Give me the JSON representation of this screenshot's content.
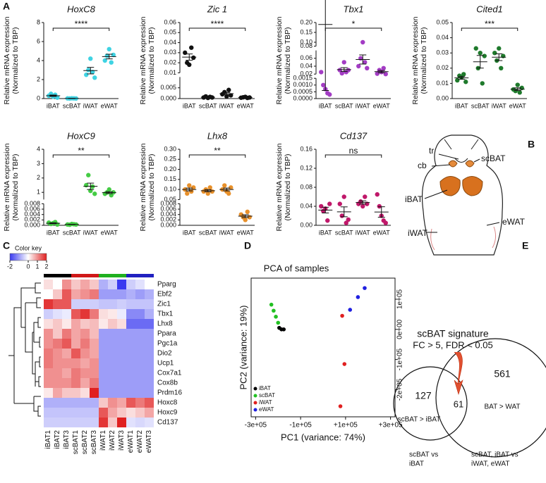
{
  "panel_labels": [
    "A",
    "B",
    "C",
    "D",
    "E"
  ],
  "chart_data": [
    {
      "type": "dot",
      "title": "HoxC8",
      "ylabel": [
        "Relative mRNA expression",
        "(Normalized to TBP)"
      ],
      "categories": [
        "iBAT",
        "scBAT",
        "iWAT",
        "eWAT"
      ],
      "color": "#3fd3e3",
      "significance": "****",
      "segments": [
        {
          "ylim": [
            0,
            8
          ],
          "yticks": [
            0,
            2,
            4,
            6,
            8
          ]
        }
      ],
      "values": [
        [
          0.3,
          0.5,
          0.2,
          0.4,
          0.1
        ],
        [
          0.02,
          0.01,
          0.03,
          0.02,
          0.01
        ],
        [
          2.5,
          3.0,
          4.2,
          2.8,
          2.2
        ],
        [
          4.0,
          4.5,
          5.2,
          3.8,
          4.6
        ]
      ]
    },
    {
      "type": "dot",
      "title": "Zic 1",
      "ylabel": [
        "Relative mRNA expression",
        "(Normalized to TBP)"
      ],
      "categories": [
        "iBAT",
        "scBAT",
        "iWAT",
        "eWAT"
      ],
      "color": "#111111",
      "significance": "****",
      "segments": [
        {
          "ylim": [
            0,
            0.01
          ],
          "yticks": [
            {
              "value": 0,
              "label": "0.000"
            },
            0.005
          ]
        },
        {
          "ylim": [
            0.01,
            0.06
          ],
          "yticks": [
            0.01,
            0.02,
            0.03,
            0.04,
            0.05,
            0.06
          ]
        }
      ],
      "values": [
        [
          0.03,
          0.02,
          0.018,
          0.035,
          0.025
        ],
        [
          0.0005,
          0.001,
          0.0003,
          0.0008,
          0.0005
        ],
        [
          0.002,
          0.003,
          0.001,
          0.004,
          0.0015
        ],
        [
          0.0004,
          0.0006,
          0.0008,
          0.0003,
          0.0005
        ]
      ]
    },
    {
      "type": "dot",
      "title": "Tbx1",
      "ylabel": [
        "Relative mRNA expression",
        "(Normalized to TBP)"
      ],
      "categories": [
        "iBAT",
        "scBAT",
        "iWAT",
        "eWAT"
      ],
      "color": "#a33cc4",
      "significance": "*",
      "segments": [
        {
          "ylim": [
            0,
            0.0015
          ],
          "yticks": [
            {
              "value": 0,
              "label": "0.0000"
            },
            0.0005,
            {
              "value": 0.001,
              "label": "0.0010"
            },
            0.0015
          ]
        },
        {
          "ylim": [
            0.02,
            0.08
          ],
          "yticks": [
            0.02,
            0.04,
            0.06,
            0.08
          ]
        },
        {
          "ylim": [
            0.08,
            0.2
          ],
          "yticks": [
            {
              "value": 0.1,
              "label": "0.10"
            },
            0.15,
            {
              "value": 0.2,
              "label": "0.20"
            }
          ]
        }
      ],
      "values": [
        [
          0.025,
          0.001,
          0.0007,
          0.0004,
          0.0003
        ],
        [
          0.03,
          0.022,
          0.05,
          0.025,
          0.03
        ],
        [
          0.04,
          0.06,
          0.1,
          0.05,
          0.035
        ],
        [
          0.021,
          0.03,
          0.025,
          0.035,
          0.02
        ]
      ]
    },
    {
      "type": "dot",
      "title": "Cited1",
      "ylabel": [
        "Relative mRNA expression",
        "(Normalized to TBP)"
      ],
      "categories": [
        "iBAT",
        "scBAT",
        "iWAT",
        "eWAT"
      ],
      "color": "#1f7a2c",
      "significance": "***",
      "segments": [
        {
          "ylim": [
            0,
            0.05
          ],
          "yticks": [
            {
              "value": 0,
              "label": "0.00"
            },
            0.01,
            0.02,
            0.03,
            0.04,
            0.05
          ]
        }
      ],
      "values": [
        [
          0.012,
          0.015,
          0.014,
          0.016,
          0.011
        ],
        [
          0.033,
          0.02,
          0.03,
          0.01,
          0.028
        ],
        [
          0.03,
          0.025,
          0.033,
          0.02,
          0.028
        ],
        [
          0.006,
          0.005,
          0.009,
          0.004,
          0.007
        ]
      ]
    },
    {
      "type": "dot",
      "title": "HoxC9",
      "ylabel": [
        "Relative mRNA expression",
        "(Normalized to TBP)"
      ],
      "categories": [
        "iBAT",
        "scBAT",
        "iWAT",
        "eWAT"
      ],
      "color": "#45cc45",
      "significance": "**",
      "segments": [
        {
          "ylim": [
            0,
            0.008
          ],
          "yticks": [
            {
              "value": 0,
              "label": "0.000"
            },
            0.002,
            0.004,
            0.006,
            0.008
          ]
        },
        {
          "ylim": [
            0.5,
            4
          ],
          "yticks": [
            1,
            2,
            3,
            4
          ]
        }
      ],
      "values": [
        [
          0.001,
          0.0005,
          0.0008,
          0.0012,
          0.0003
        ],
        [
          0.0003,
          0.0002,
          0.0005,
          0.0004,
          0.0003
        ],
        [
          1.5,
          2.2,
          1.1,
          1.4,
          0.9
        ],
        [
          0.9,
          1.0,
          1.2,
          0.8,
          1.0
        ]
      ]
    },
    {
      "type": "dot",
      "title": "Lhx8",
      "ylabel": [
        "Relative mRNA expression",
        "(Normalized to TBP)"
      ],
      "categories": [
        "iBAT",
        "scBAT",
        "iWAT",
        "eWAT"
      ],
      "color": "#e8902a",
      "significance": "**",
      "segments": [
        {
          "ylim": [
            0,
            0.008
          ],
          "yticks": [
            {
              "value": 0,
              "label": "0.000"
            },
            0.002,
            0.004,
            0.006,
            0.008
          ]
        },
        {
          "ylim": [
            0.05,
            0.3
          ],
          "yticks": [
            0.05,
            {
              "value": 0.1,
              "label": "0.10"
            },
            0.15,
            {
              "value": 0.2,
              "label": "0.20"
            },
            0.25,
            {
              "value": 0.3,
              "label": "0.30"
            }
          ]
        }
      ],
      "values": [
        [
          0.1,
          0.08,
          0.12,
          0.09,
          0.11
        ],
        [
          0.09,
          0.1,
          0.08,
          0.11,
          0.09
        ],
        [
          0.1,
          0.12,
          0.09,
          0.08,
          0.11
        ],
        [
          0.004,
          0.003,
          0.002,
          0.005,
          0.003
        ]
      ]
    },
    {
      "type": "dot",
      "title": "Cd137",
      "ylabel": [
        "Relative mRNA expression",
        "(Normalized to TBP)"
      ],
      "categories": [
        "iBAT",
        "scBAT",
        "iWAT",
        "eWAT"
      ],
      "color": "#c0186a",
      "significance": "ns",
      "segments": [
        {
          "ylim": [
            0,
            0.16
          ],
          "yticks": [
            {
              "value": 0,
              "label": "0.00"
            },
            0.04,
            0.08,
            0.12,
            0.16
          ]
        }
      ],
      "values": [
        [
          0.04,
          0.03,
          0.035,
          0.01,
          0.045
        ],
        [
          0.045,
          0.02,
          0.06,
          0.005,
          0.012
        ],
        [
          0.045,
          0.05,
          0.04,
          0.06,
          0.045
        ],
        [
          0.065,
          0.04,
          0.02,
          0.01,
          0.005
        ]
      ]
    },
    {
      "type": "heatmap",
      "color_key_title": "Color key",
      "color_key_ticks": [
        -2,
        0,
        1,
        2
      ],
      "low_color": "#3a3af0",
      "mid_color": "#ffffff",
      "high_color": "#e02020",
      "columns": [
        "iBAT1",
        "iBAT2",
        "iBAT3",
        "scBAT1",
        "scBAT2",
        "scBAT3",
        "iWAT1",
        "iWAT2",
        "iWAT3",
        "eWAT1",
        "eWAT2",
        "eWAT3"
      ],
      "column_colors": [
        "#000000",
        "#000000",
        "#000000",
        "#d01818",
        "#d01818",
        "#d01818",
        "#20b020",
        "#20b020",
        "#20b020",
        "#2020c0",
        "#2020c0",
        "#2020c0"
      ],
      "rows": [
        "Pparg",
        "Ebf2",
        "Zic1",
        "Tbx1",
        "Lhx8",
        "Ppara",
        "Pgc1a",
        "Dio2",
        "Ucp1",
        "Cox7a1",
        "Cox8b",
        "Prdm16",
        "Hoxc8",
        "Hoxc9",
        "Cd137"
      ],
      "values": [
        [
          0.3,
          0,
          1,
          0.5,
          0.8,
          0.5,
          -0.8,
          -0.5,
          -2,
          -0.5,
          -0.3,
          0
        ],
        [
          0,
          0.5,
          1.5,
          0.8,
          1,
          1.2,
          -1,
          -1,
          -1,
          -0.8,
          -1,
          -0.8
        ],
        [
          1.8,
          1.5,
          1.5,
          -0.5,
          -0.5,
          -0.5,
          -0.6,
          -0.6,
          -0.5,
          -0.6,
          -0.6,
          -0.6
        ],
        [
          -0.5,
          -0.3,
          -0.2,
          1.5,
          1.8,
          1.2,
          0.3,
          0.2,
          -0.2,
          -1.2,
          -1.2,
          -0.8
        ],
        [
          0.3,
          0.5,
          0.2,
          0.8,
          0.5,
          0.6,
          0.2,
          0.5,
          0.3,
          -1.5,
          -1.5,
          -1.5
        ],
        [
          1,
          0.5,
          1.2,
          0.8,
          1,
          0.6,
          -1,
          -1,
          -1,
          -1,
          -1,
          -1
        ],
        [
          1,
          1.2,
          1.5,
          0.8,
          1.2,
          0.8,
          -1,
          -1,
          -1,
          -1,
          -1,
          -1
        ],
        [
          1.2,
          1,
          0.8,
          1.5,
          1,
          0.8,
          -1,
          -1,
          -1,
          -1,
          -1,
          -1
        ],
        [
          1.2,
          1,
          1,
          1,
          0.8,
          1,
          -1,
          -1,
          -1,
          -1,
          -1,
          -1
        ],
        [
          1,
          1,
          0.8,
          1.2,
          1,
          1,
          -1,
          -1,
          -1,
          -1,
          -1,
          -1
        ],
        [
          1,
          1,
          1,
          1.2,
          0.8,
          1.2,
          -1,
          -1,
          -1,
          -1,
          -1,
          -1
        ],
        [
          0.2,
          0.8,
          0.5,
          0.5,
          0.3,
          2,
          -1,
          -1,
          -1,
          -1,
          -1,
          -1
        ],
        [
          -0.8,
          -0.8,
          -0.8,
          -0.8,
          -0.8,
          -0.8,
          0.5,
          1,
          0.8,
          1.5,
          1.2,
          1.5
        ],
        [
          -0.6,
          -0.6,
          -0.6,
          -0.6,
          -0.6,
          -0.6,
          1.5,
          0.8,
          0.5,
          0.3,
          0.5,
          0.8
        ],
        [
          -0.5,
          -0.5,
          -0.5,
          -0.5,
          -0.5,
          -0.5,
          1.8,
          0.5,
          2,
          -0.3,
          -0.4,
          -0.3
        ]
      ]
    },
    {
      "type": "scatter",
      "title": "PCA of samples",
      "xlabel": "PC1 (variance: 74%)",
      "ylabel": "PC2 (variance: 19%)",
      "legend": "lower left",
      "xlim": [
        -320000,
        320000
      ],
      "ylim": [
        -290000,
        170000
      ],
      "xticks": [
        {
          "value": -300000,
          "label": "-3e+05"
        },
        {
          "value": -100000,
          "label": "-1e+05"
        },
        {
          "value": 100000,
          "label": "+1e+05"
        },
        {
          "value": 300000,
          "label": "+3e+05"
        }
      ],
      "yticks": [
        {
          "value": -200000,
          "label": "-2e+05"
        },
        {
          "value": -100000,
          "label": "-1e+05"
        },
        {
          "value": 0,
          "label": "0e+00"
        },
        {
          "value": 100000,
          "label": "1e+05"
        }
      ],
      "series": [
        {
          "name": "iBAT",
          "color": "#000000",
          "x": [
            -195000,
            -185000,
            -175000
          ],
          "values": [
            5000,
            0,
            0
          ]
        },
        {
          "name": "scBAT",
          "color": "#22c022",
          "x": [
            -230000,
            -220000,
            -210000,
            -200000
          ],
          "values": [
            82000,
            62000,
            42000,
            22000
          ]
        },
        {
          "name": "iWAT",
          "color": "#e02020",
          "x": [
            85000,
            95000,
            77000
          ],
          "values": [
            45000,
            -115000,
            -255000
          ]
        },
        {
          "name": "eWAT",
          "color": "#2020e0",
          "x": [
            120000,
            155000,
            185000
          ],
          "values": [
            65000,
            107000,
            137000
          ]
        }
      ]
    }
  ],
  "diagram": {
    "labels": [
      "tr",
      "cb",
      "scBAT",
      "iBAT",
      "iWAT",
      "eWAT"
    ]
  },
  "venn": {
    "title": "scBAT signature",
    "subtitle": "FC > 5, FDR < 0.05",
    "left_count": "127",
    "overlap_count": "61",
    "right_count": "561",
    "left_label": "scBAT > iBAT",
    "right_label": "BAT > WAT",
    "left_caption": [
      "scBAT vs",
      "iBAT"
    ],
    "right_caption": [
      "scBAT, iBAT vs",
      "iWAT, eWAT"
    ]
  }
}
